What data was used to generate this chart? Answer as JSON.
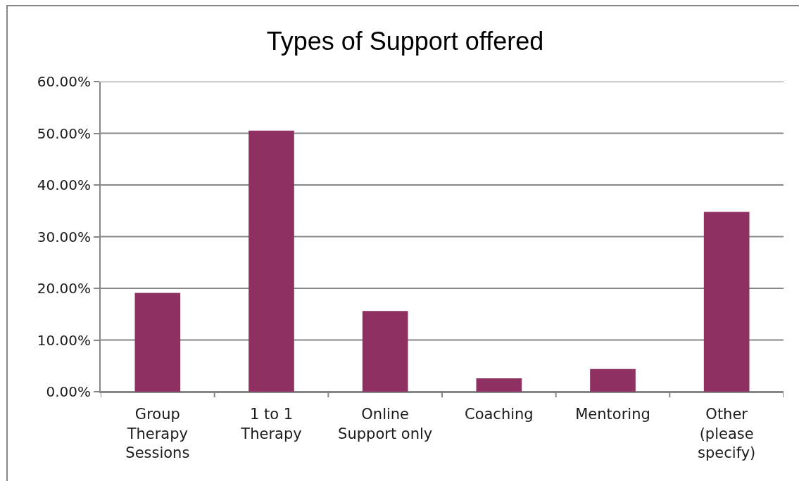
{
  "chart_data": {
    "type": "bar",
    "title": "Types of Support offered",
    "categories": [
      "Group Therapy Sessions",
      "1 to 1 Therapy",
      "Online Support only",
      "Coaching",
      "Mentoring",
      "Other (please specify)"
    ],
    "values": [
      19.1,
      50.5,
      15.6,
      2.6,
      4.4,
      34.8
    ],
    "color": "#8e3062",
    "ylim": [
      0,
      60
    ],
    "yticks": [
      {
        "value": 0,
        "label": "0.00%"
      },
      {
        "value": 10,
        "label": "10.00%"
      },
      {
        "value": 20,
        "label": "20.00%"
      },
      {
        "value": 30,
        "label": "30.00%"
      },
      {
        "value": 40,
        "label": "40.00%"
      },
      {
        "value": 50,
        "label": "50.00%"
      },
      {
        "value": 60,
        "label": "60.00%"
      }
    ],
    "grid": "y"
  }
}
